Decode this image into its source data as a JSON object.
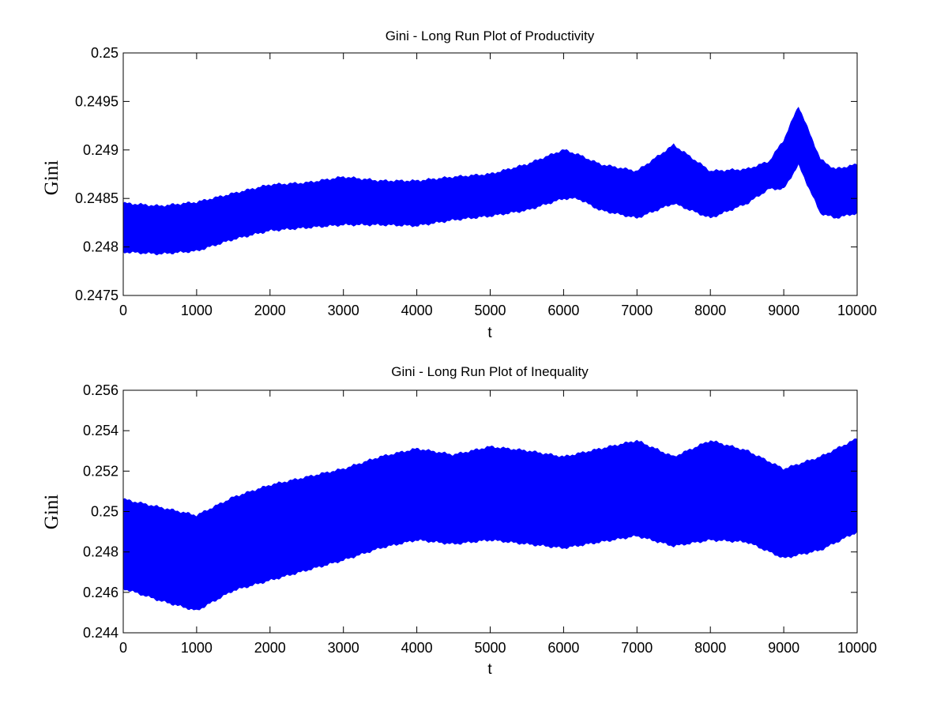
{
  "chart_data": [
    {
      "type": "area",
      "title": "Gini - Long Run Plot of Productivity",
      "xlabel": "t",
      "ylabel": "Gini",
      "xlim": [
        0,
        10000
      ],
      "ylim": [
        0.2475,
        0.25
      ],
      "xticks": [
        0,
        1000,
        2000,
        3000,
        4000,
        5000,
        6000,
        7000,
        8000,
        9000,
        10000
      ],
      "xtick_labels": [
        "0",
        "1000",
        "2000",
        "3000",
        "4000",
        "5000",
        "6000",
        "7000",
        "8000",
        "9000",
        "10000"
      ],
      "yticks": [
        0.2475,
        0.248,
        0.2485,
        0.249,
        0.2495,
        0.25
      ],
      "ytick_labels": [
        "0.2475",
        "0.248",
        "0.2485",
        "0.249",
        "0.2495",
        "0.25"
      ],
      "grid": false,
      "legend": "none",
      "color": "#0000ff",
      "x": [
        0,
        500,
        1000,
        1500,
        2000,
        2500,
        3000,
        3500,
        4000,
        4500,
        5000,
        5500,
        6000,
        6200,
        6500,
        7000,
        7500,
        8000,
        8500,
        8800,
        9000,
        9200,
        9500,
        9700,
        10000
      ],
      "upper": [
        0.24845,
        0.24842,
        0.24846,
        0.24855,
        0.24864,
        0.24866,
        0.24872,
        0.24868,
        0.24868,
        0.24872,
        0.24875,
        0.24885,
        0.249,
        0.24895,
        0.24885,
        0.24878,
        0.24905,
        0.24878,
        0.2488,
        0.24888,
        0.2491,
        0.24945,
        0.2489,
        0.2488,
        0.24885
      ],
      "lower": [
        0.24795,
        0.24793,
        0.24796,
        0.24808,
        0.24817,
        0.2482,
        0.24823,
        0.24823,
        0.24822,
        0.24828,
        0.24832,
        0.24838,
        0.2485,
        0.2485,
        0.24838,
        0.2483,
        0.24845,
        0.2483,
        0.24845,
        0.2486,
        0.2486,
        0.24885,
        0.24835,
        0.2483,
        0.24835
      ]
    },
    {
      "type": "area",
      "title": "Gini - Long Run Plot of Inequality",
      "xlabel": "t",
      "ylabel": "Gini",
      "xlim": [
        0,
        10000
      ],
      "ylim": [
        0.244,
        0.256
      ],
      "xticks": [
        0,
        1000,
        2000,
        3000,
        4000,
        5000,
        6000,
        7000,
        8000,
        9000,
        10000
      ],
      "xtick_labels": [
        "0",
        "1000",
        "2000",
        "3000",
        "4000",
        "5000",
        "6000",
        "7000",
        "8000",
        "9000",
        "10000"
      ],
      "yticks": [
        0.244,
        0.246,
        0.248,
        0.25,
        0.252,
        0.254,
        0.256
      ],
      "ytick_labels": [
        "0.244",
        "0.246",
        "0.248",
        "0.25",
        "0.252",
        "0.254",
        "0.256"
      ],
      "grid": false,
      "legend": "none",
      "color": "#0000ff",
      "x": [
        0,
        500,
        1000,
        1500,
        2000,
        2500,
        3000,
        3500,
        4000,
        4500,
        5000,
        5500,
        6000,
        6500,
        7000,
        7500,
        8000,
        8500,
        9000,
        9500,
        10000
      ],
      "upper": [
        0.2506,
        0.2502,
        0.2498,
        0.2507,
        0.2513,
        0.2517,
        0.2521,
        0.2527,
        0.2531,
        0.2528,
        0.2532,
        0.253,
        0.2527,
        0.2531,
        0.2535,
        0.2527,
        0.2535,
        0.253,
        0.2521,
        0.2527,
        0.2536
      ],
      "lower": [
        0.2462,
        0.2456,
        0.2451,
        0.2461,
        0.2466,
        0.2471,
        0.2476,
        0.2482,
        0.2486,
        0.2484,
        0.2486,
        0.2484,
        0.2482,
        0.2485,
        0.2488,
        0.2483,
        0.2486,
        0.2485,
        0.2477,
        0.2481,
        0.249
      ]
    }
  ]
}
